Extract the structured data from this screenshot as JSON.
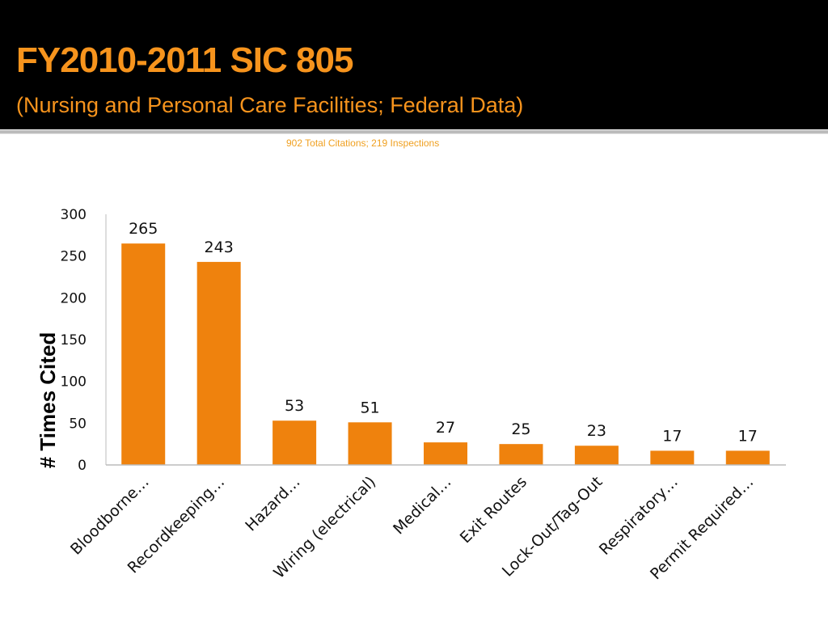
{
  "header": {
    "title": "FY2010-2011 SIC 805",
    "subtitle": "(Nursing and Personal Care Facilities; Federal Data)",
    "note": "902 Total Citations; 219 Inspections"
  },
  "colors": {
    "bar": "#ef820d",
    "title": "#f7941d",
    "axis": "#bbbbbb"
  },
  "chart_data": {
    "type": "bar",
    "title": "",
    "xlabel": "",
    "ylabel": "# Times Cited",
    "ylim": [
      0,
      300
    ],
    "yticks": [
      0,
      50,
      100,
      150,
      200,
      250,
      300
    ],
    "grid": false,
    "categories": [
      "Bloodborne…",
      "Recordkeeping…",
      "Hazard…",
      "Wiring (electrical)",
      "Medical…",
      "Exit Routes",
      "Lock-Out/Tag-Out",
      "Respiratory…",
      "Permit Required…"
    ],
    "values": [
      265,
      243,
      53,
      51,
      27,
      25,
      23,
      17,
      17
    ],
    "data_labels": true
  }
}
